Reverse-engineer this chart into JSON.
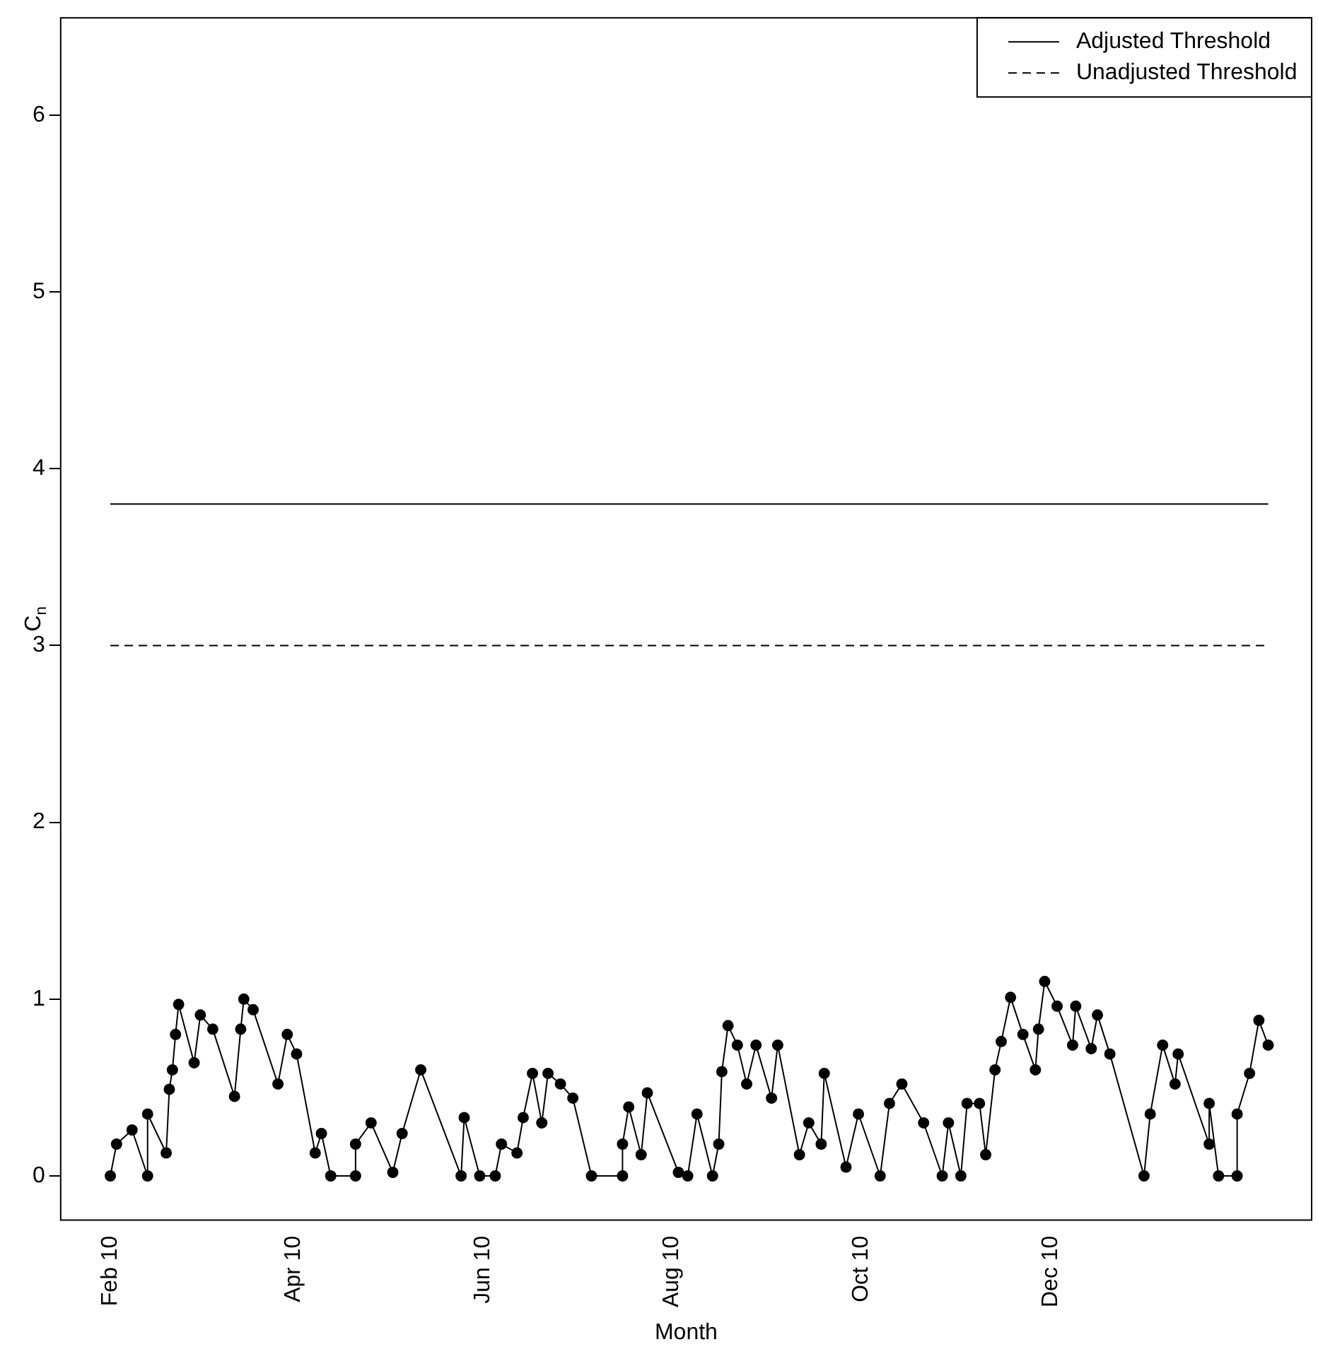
{
  "chart_data": {
    "type": "line",
    "xlabel": "Month",
    "ylabel": "C$_{n}$",
    "x": [
      "2010-02-01",
      "2010-02-03",
      "2010-02-08",
      "2010-02-13",
      "2010-02-13",
      "2010-02-19",
      "2010-02-20",
      "2010-02-21",
      "2010-02-22",
      "2010-02-23",
      "2010-02-28",
      "2010-03-02",
      "2010-03-06",
      "2010-03-13",
      "2010-03-15",
      "2010-03-16",
      "2010-03-19",
      "2010-03-27",
      "2010-03-30",
      "2010-04-02",
      "2010-04-08",
      "2010-04-10",
      "2010-04-13",
      "2010-04-21",
      "2010-04-21",
      "2010-04-26",
      "2010-05-03",
      "2010-05-06",
      "2010-05-12",
      "2010-05-25",
      "2010-05-26",
      "2010-05-31",
      "2010-06-05",
      "2010-06-07",
      "2010-06-12",
      "2010-06-14",
      "2010-06-17",
      "2010-06-20",
      "2010-06-22",
      "2010-06-26",
      "2010-06-30",
      "2010-07-06",
      "2010-07-16",
      "2010-07-16",
      "2010-07-18",
      "2010-07-22",
      "2010-07-24",
      "2010-08-03",
      "2010-08-06",
      "2010-08-09",
      "2010-08-14",
      "2010-08-16",
      "2010-08-17",
      "2010-08-19",
      "2010-08-22",
      "2010-08-25",
      "2010-08-28",
      "2010-09-02",
      "2010-09-04",
      "2010-09-11",
      "2010-09-14",
      "2010-09-18",
      "2010-09-19",
      "2010-09-26",
      "2010-09-30",
      "2010-10-07",
      "2010-10-10",
      "2010-10-14",
      "2010-10-21",
      "2010-10-27",
      "2010-10-29",
      "2010-11-02",
      "2010-11-04",
      "2010-11-08",
      "2010-11-10",
      "2010-11-13",
      "2010-11-15",
      "2010-11-18",
      "2010-11-22",
      "2010-11-26",
      "2010-11-27",
      "2010-11-29",
      "2010-12-03",
      "2010-12-08",
      "2010-12-09",
      "2010-12-14",
      "2010-12-16",
      "2010-12-20",
      "2010-12-31",
      "2011-01-02",
      "2011-01-06",
      "2011-01-10",
      "2011-01-11",
      "2011-01-21",
      "2011-01-21",
      "2011-01-24",
      "2011-01-30",
      "2011-01-30",
      "2011-02-03",
      "2011-02-06",
      "2011-02-09"
    ],
    "series": [
      {
        "color": "#000000",
        "values": [
          0,
          0.18,
          0.26,
          0,
          0.35,
          0.13,
          0.49,
          0.6,
          0.8,
          0.97,
          0.64,
          0.91,
          0.83,
          0.45,
          0.83,
          1.0,
          0.94,
          0.52,
          0.8,
          0.69,
          0.13,
          0.24,
          0,
          0,
          0.18,
          0.3,
          0.02,
          0.24,
          0.6,
          0,
          0.33,
          0,
          0,
          0.18,
          0.13,
          0.33,
          0.58,
          0.3,
          0.58,
          0.52,
          0.44,
          0,
          0,
          0.18,
          0.39,
          0.12,
          0.47,
          0.02,
          0,
          0.35,
          0,
          0.18,
          0.59,
          0.85,
          0.74,
          0.52,
          0.74,
          0.44,
          0.74,
          0.12,
          0.3,
          0.18,
          0.58,
          0.05,
          0.35,
          0,
          0.41,
          0.52,
          0.3,
          0,
          0.3,
          0,
          0.41,
          0.41,
          0.12,
          0.6,
          0.76,
          1.01,
          0.8,
          0.6,
          0.83,
          1.1,
          0.96,
          0.74,
          0.96,
          0.72,
          0.91,
          0.69,
          0,
          0.35,
          0.74,
          0.52,
          0.69,
          0.18,
          0.41,
          0,
          0,
          0.35,
          0.58,
          0.88,
          0.74
        ]
      }
    ],
    "xlim": [
      "2010-01-16",
      "2011-02-23"
    ],
    "xticks": [
      {
        "value": "2010-02-01",
        "label": "Feb 10"
      },
      {
        "value": "2010-04-01",
        "label": "Apr 10"
      },
      {
        "value": "2010-06-01",
        "label": "Jun 10"
      },
      {
        "value": "2010-08-01",
        "label": "Aug 10"
      },
      {
        "value": "2010-10-01",
        "label": "Oct 10"
      },
      {
        "value": "2010-12-01",
        "label": "Dec 10"
      }
    ],
    "ylim": [
      -0.25,
      6.55
    ],
    "yticks": [
      0,
      1,
      2,
      3,
      4,
      5,
      6
    ],
    "ref_lines": [
      {
        "axis": "y",
        "value": 3.8,
        "label": "Adjusted Threshold",
        "line_style": "solid",
        "color": "#000000"
      },
      {
        "axis": "y",
        "value": 3.0,
        "label": "Unadjusted Threshold",
        "line_style": "dashed",
        "color": "#000000"
      }
    ],
    "legend": "top right",
    "marker": "circle",
    "line_style": "solid",
    "grid": false
  }
}
